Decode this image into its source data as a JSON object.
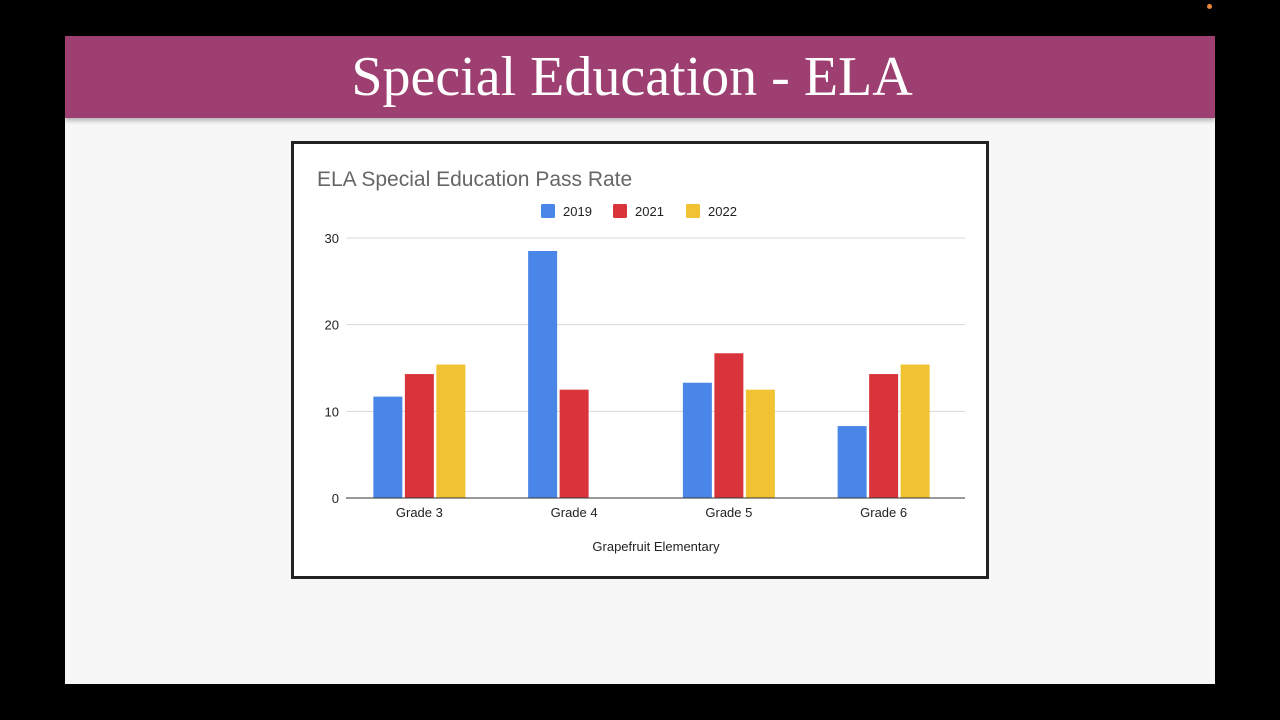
{
  "slide": {
    "title": "Special Education - ELA"
  },
  "colors": {
    "banner": "#9e3f72",
    "recording_dot": "#e8873a"
  },
  "chart_data": {
    "type": "bar",
    "title": "ELA Special Education Pass Rate",
    "xlabel": "Grapefruit Elementary",
    "ylabel": "",
    "categories": [
      "Grade 3",
      "Grade 4",
      "Grade 5",
      "Grade 6"
    ],
    "series": [
      {
        "name": "2019",
        "color": "#4a86e8",
        "values": [
          11.7,
          28.5,
          13.3,
          8.3
        ]
      },
      {
        "name": "2021",
        "color": "#d9343b",
        "values": [
          14.3,
          12.5,
          16.7,
          14.3
        ]
      },
      {
        "name": "2022",
        "color": "#f1c232",
        "values": [
          15.4,
          null,
          12.5,
          15.4
        ]
      }
    ],
    "ylim": [
      0,
      30
    ],
    "yticks": [
      0,
      10,
      20,
      30
    ],
    "grid": true,
    "legend_position": "top"
  }
}
